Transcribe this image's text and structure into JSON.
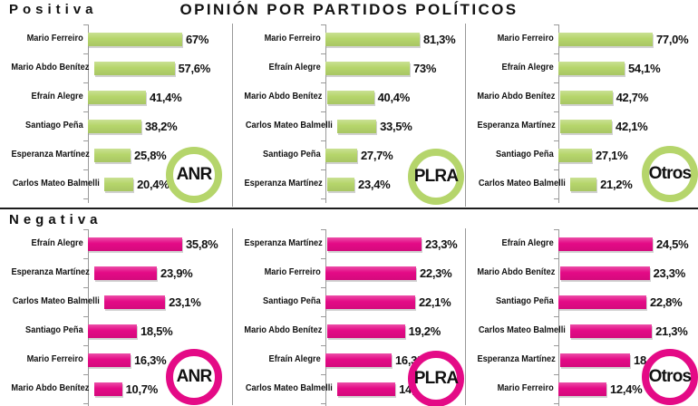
{
  "header": {
    "title": "OPINIÓN POR PARTIDOS POLÍTICOS"
  },
  "colors": {
    "positive_green": "#b5d56b",
    "negative_magenta": "#e40a86",
    "text": "#111111",
    "axis_gray": "#999999"
  },
  "chart_data": {
    "type": "bar",
    "orientation": "horizontal",
    "unit": "%",
    "title": "OPINIÓN POR PARTIDOS POLÍTICOS",
    "grid": false,
    "value_axis_labels": false,
    "sections": [
      {
        "label": "Positiva",
        "bar_color": "#b5d56b",
        "panels": [
          {
            "badge": "ANR",
            "bars": [
              {
                "name": "Mario Ferreiro",
                "value": 67,
                "label": "67%"
              },
              {
                "name": "Mario Abdo Benítez",
                "value": 57.6,
                "label": "57,6%"
              },
              {
                "name": "Efraín Alegre",
                "value": 41.4,
                "label": "41,4%"
              },
              {
                "name": "Santiago Peña",
                "value": 38.2,
                "label": "38,2%"
              },
              {
                "name": "Esperanza Martínez",
                "value": 25.8,
                "label": "25,8%"
              },
              {
                "name": "Carlos Mateo Balmelli",
                "value": 20.4,
                "label": "20,4%"
              }
            ]
          },
          {
            "badge": "PLRA",
            "bars": [
              {
                "name": "Mario Ferreiro",
                "value": 81.3,
                "label": "81,3%"
              },
              {
                "name": "Efraín Alegre",
                "value": 73,
                "label": "73%"
              },
              {
                "name": "Mario Abdo Benítez",
                "value": 40.4,
                "label": "40,4%"
              },
              {
                "name": "Carlos Mateo Balmelli",
                "value": 33.5,
                "label": "33,5%"
              },
              {
                "name": "Santiago Peña",
                "value": 27.7,
                "label": "27,7%"
              },
              {
                "name": "Esperanza Martínez",
                "value": 23.4,
                "label": "23,4%"
              }
            ]
          },
          {
            "badge": "Otros",
            "bars": [
              {
                "name": "Mario Ferreiro",
                "value": 77.0,
                "label": "77,0%"
              },
              {
                "name": "Efraín Alegre",
                "value": 54.1,
                "label": "54,1%"
              },
              {
                "name": "Mario Abdo Benítez",
                "value": 42.7,
                "label": "42,7%"
              },
              {
                "name": "Esperanza Martínez",
                "value": 42.1,
                "label": "42,1%"
              },
              {
                "name": "Santiago Peña",
                "value": 27.1,
                "label": "27,1%"
              },
              {
                "name": "Carlos Mateo Balmelli",
                "value": 21.2,
                "label": "21,2%"
              }
            ]
          }
        ]
      },
      {
        "label": "Negativa",
        "bar_color": "#e40a86",
        "panels": [
          {
            "badge": "ANR",
            "bars": [
              {
                "name": "Efraín Alegre",
                "value": 35.8,
                "label": "35,8%"
              },
              {
                "name": "Esperanza Martínez",
                "value": 23.9,
                "label": "23,9%"
              },
              {
                "name": "Carlos Mateo Balmelli",
                "value": 23.1,
                "label": "23,1%"
              },
              {
                "name": "Santiago Peña",
                "value": 18.5,
                "label": "18,5%"
              },
              {
                "name": "Mario Ferreiro",
                "value": 16.3,
                "label": "16,3%"
              },
              {
                "name": "Mario Abdo Benítez",
                "value": 10.7,
                "label": "10,7%"
              }
            ]
          },
          {
            "badge": "PLRA",
            "bars": [
              {
                "name": "Esperanza Martínez",
                "value": 23.3,
                "label": "23,3%"
              },
              {
                "name": "Mario Ferreiro",
                "value": 22.3,
                "label": "22,3%"
              },
              {
                "name": "Santiago Peña",
                "value": 22.1,
                "label": "22,1%"
              },
              {
                "name": "Mario Abdo Benítez",
                "value": 19.2,
                "label": "19,2%"
              },
              {
                "name": "Efraín Alegre",
                "value": 16.3,
                "label": "16,3%"
              },
              {
                "name": "Carlos Mateo Balmelli",
                "value": 14.3,
                "label": "14,3%"
              }
            ]
          },
          {
            "badge": "Otros",
            "bars": [
              {
                "name": "Efraín Alegre",
                "value": 24.5,
                "label": "24,5%"
              },
              {
                "name": "Mario Abdo Benítez",
                "value": 23.3,
                "label": "23,3%"
              },
              {
                "name": "Santiago Peña",
                "value": 22.8,
                "label": "22,8%"
              },
              {
                "name": "Carlos Mateo Balmelli",
                "value": 21.3,
                "label": "21,3%"
              },
              {
                "name": "Esperanza Martínez",
                "value": 18.1,
                "label": "18,1%"
              },
              {
                "name": "Mario Ferreiro",
                "value": 12.4,
                "label": "12,4%"
              }
            ]
          }
        ]
      }
    ]
  }
}
